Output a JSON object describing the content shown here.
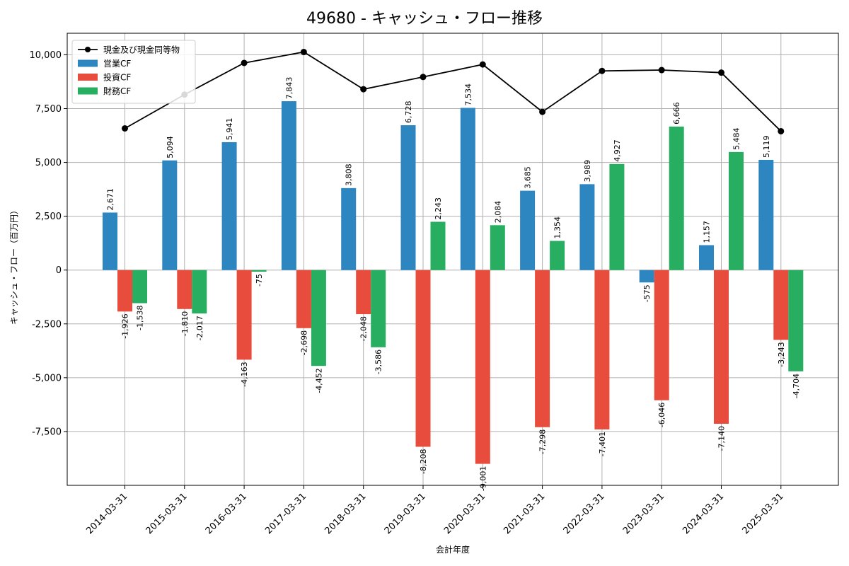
{
  "chart_data": {
    "type": "bar",
    "title": "49680 - キャッシュ・フロー推移",
    "xlabel": "会計年度",
    "ylabel": "キャッシュ・フロー（百万円）",
    "categories": [
      "2014-03-31",
      "2015-03-31",
      "2016-03-31",
      "2017-03-31",
      "2018-03-31",
      "2019-03-31",
      "2020-03-31",
      "2021-03-31",
      "2022-03-31",
      "2023-03-31",
      "2024-03-31",
      "2025-03-31"
    ],
    "series": [
      {
        "name": "営業CF",
        "color": "#2e86c1",
        "values": [
          2671,
          5094,
          5941,
          7843,
          3808,
          6728,
          7534,
          3685,
          3989,
          -575,
          1157,
          5119
        ]
      },
      {
        "name": "投資CF",
        "color": "#e74c3c",
        "values": [
          -1926,
          -1810,
          -4163,
          -2698,
          -2048,
          -8208,
          -9001,
          -7298,
          -7401,
          -6046,
          -7140,
          -3243
        ]
      },
      {
        "name": "財務CF",
        "color": "#27ae60",
        "values": [
          -1538,
          -2017,
          -75,
          -4452,
          -3586,
          2243,
          2084,
          1354,
          4927,
          6666,
          5484,
          -4704
        ]
      }
    ],
    "line_series": {
      "name": "現金及び現金同等物",
      "color": "#000000",
      "values": [
        6580,
        8150,
        9620,
        10130,
        8400,
        8970,
        9550,
        7350,
        9250,
        9290,
        9170,
        6450
      ]
    },
    "yticks": [
      -7500,
      -5000,
      -2500,
      0,
      2500,
      5000,
      7500,
      10000
    ],
    "ylim": [
      -10000,
      11000
    ],
    "grid": true,
    "legend_position": "top-left"
  }
}
